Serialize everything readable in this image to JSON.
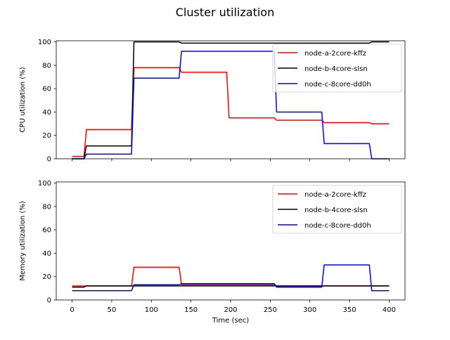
{
  "figure": {
    "title": "Cluster utilization"
  },
  "chart_data": [
    {
      "type": "line",
      "title": "",
      "xlabel": "",
      "ylabel": "CPU utilization (%)",
      "xlim": [
        -20,
        420
      ],
      "ylim": [
        0,
        101
      ],
      "xticks": [
        0,
        50,
        100,
        150,
        200,
        250,
        300,
        350,
        400
      ],
      "xtick_labels_visible": false,
      "yticks": [
        0,
        20,
        40,
        60,
        80,
        100
      ],
      "grid": false,
      "legend": "top-right",
      "series": [
        {
          "name": "node-a-2core-kffz",
          "color": "#ff0000",
          "x": [
            0,
            15,
            18,
            75,
            78,
            135,
            138,
            195,
            198,
            255,
            258,
            315,
            318,
            375,
            378,
            400
          ],
          "y": [
            2,
            2,
            25,
            25,
            78,
            78,
            74,
            74,
            35,
            35,
            33,
            33,
            31,
            31,
            30,
            30
          ]
        },
        {
          "name": "node-b-4core-slsn",
          "color": "#000000",
          "x": [
            0,
            15,
            18,
            75,
            78,
            135,
            138,
            375,
            378,
            400
          ],
          "y": [
            0,
            0,
            11,
            11,
            100,
            100,
            99,
            99,
            100,
            100
          ]
        },
        {
          "name": "node-c-8core-dd0h",
          "color": "#0000ff",
          "x": [
            0,
            15,
            18,
            75,
            78,
            135,
            138,
            255,
            258,
            315,
            318,
            375,
            378,
            400
          ],
          "y": [
            0,
            0,
            4,
            4,
            69,
            69,
            92,
            92,
            40,
            40,
            13,
            13,
            0,
            0
          ]
        }
      ]
    },
    {
      "type": "line",
      "title": "",
      "xlabel": "Time (sec)",
      "ylabel": "Memory utilization (%)",
      "xlim": [
        -20,
        420
      ],
      "ylim": [
        0,
        101
      ],
      "xticks": [
        0,
        50,
        100,
        150,
        200,
        250,
        300,
        350,
        400
      ],
      "xtick_labels_visible": true,
      "yticks": [
        0,
        20,
        40,
        60,
        80,
        100
      ],
      "grid": false,
      "legend": "top-right",
      "series": [
        {
          "name": "node-a-2core-kffz",
          "color": "#ff0000",
          "x": [
            0,
            15,
            18,
            75,
            78,
            135,
            138,
            195,
            198,
            255,
            258,
            315,
            318,
            375,
            378,
            400
          ],
          "y": [
            12,
            12,
            12,
            12,
            28,
            28,
            13,
            13,
            13,
            13,
            12,
            12,
            12,
            12,
            12,
            12
          ]
        },
        {
          "name": "node-b-4core-slsn",
          "color": "#000000",
          "x": [
            0,
            15,
            18,
            400
          ],
          "y": [
            11,
            11,
            12,
            12
          ]
        },
        {
          "name": "node-c-8core-dd0h",
          "color": "#0000ff",
          "x": [
            0,
            15,
            18,
            75,
            78,
            135,
            138,
            255,
            258,
            315,
            318,
            375,
            378,
            400
          ],
          "y": [
            8,
            8,
            8,
            8,
            13,
            13,
            14,
            14,
            11,
            11,
            30,
            30,
            8,
            8
          ]
        }
      ]
    }
  ]
}
